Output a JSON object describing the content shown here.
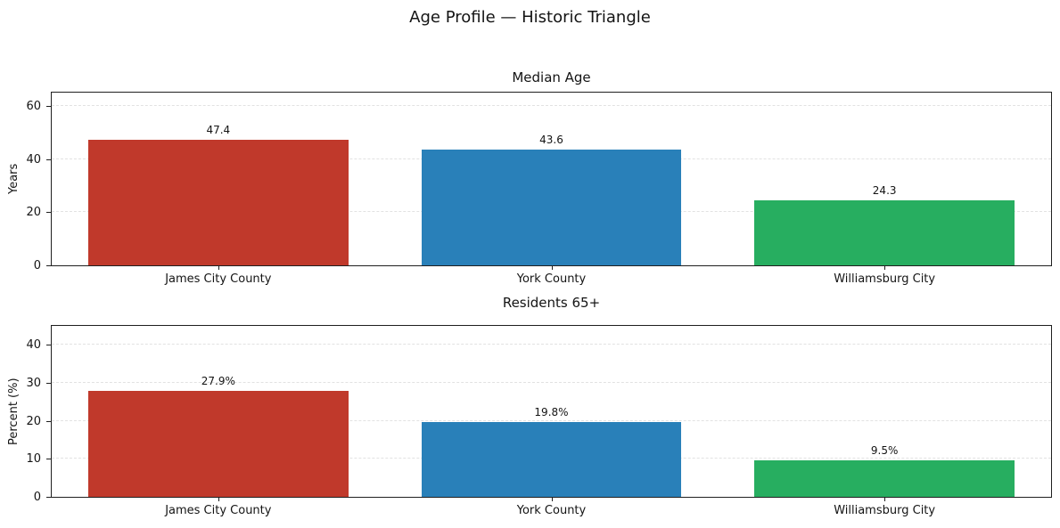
{
  "page": {
    "title": "Age Profile — Historic Triangle",
    "background": "#ffffff"
  },
  "chart_data": [
    {
      "type": "bar",
      "title": "Median Age",
      "xlabel": "",
      "ylabel": "Years",
      "categories": [
        "James City County",
        "York County",
        "Williamsburg City"
      ],
      "values": [
        47.4,
        43.6,
        24.3
      ],
      "value_labels": [
        "47.4",
        "43.6",
        "24.3"
      ],
      "bar_colors": [
        "#c0392b",
        "#2980b9",
        "#27ae60"
      ],
      "yticks": [
        0,
        20,
        40,
        60
      ],
      "ylim": [
        0,
        65
      ],
      "grid": "horizontal-dashed",
      "legend": "none"
    },
    {
      "type": "bar",
      "title": "Residents 65+",
      "xlabel": "",
      "ylabel": "Percent (%)",
      "categories": [
        "James City County",
        "York County",
        "Williamsburg City"
      ],
      "values": [
        27.9,
        19.8,
        9.5
      ],
      "value_labels": [
        "27.9%",
        "19.8%",
        "9.5%"
      ],
      "bar_colors": [
        "#c0392b",
        "#2980b9",
        "#27ae60"
      ],
      "yticks": [
        0,
        10,
        20,
        30,
        40
      ],
      "ylim": [
        0,
        45
      ],
      "grid": "horizontal-dashed",
      "legend": "none"
    }
  ]
}
